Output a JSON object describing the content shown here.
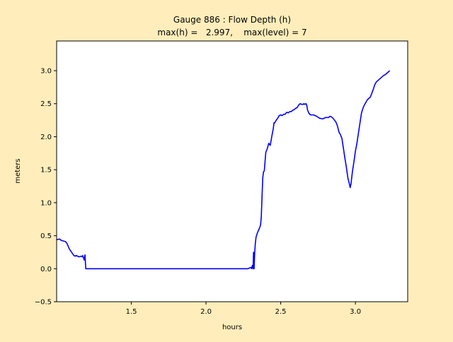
{
  "colors": {
    "figure_background": "#ffeebb",
    "axes_background": "#ffffff",
    "series_line": "#0000ff",
    "axis": "#000000"
  },
  "chart_data": {
    "type": "line",
    "title_line1": "Gauge 886 : Flow Depth (h)",
    "title_line2": "max(h) =   2.997,    max(level) = 7",
    "xlabel": "hours",
    "ylabel": "meters",
    "xlim": [
      1.0,
      3.35
    ],
    "ylim": [
      -0.5,
      3.45
    ],
    "grid": false,
    "legend": "none",
    "x_ticks": [
      {
        "value": 1.5,
        "label": "1.5"
      },
      {
        "value": 2.0,
        "label": "2.0"
      },
      {
        "value": 2.5,
        "label": "2.5"
      },
      {
        "value": 3.0,
        "label": "3.0"
      }
    ],
    "y_ticks": [
      {
        "value": -0.5,
        "label": "−0.5"
      },
      {
        "value": 0.0,
        "label": "0.0"
      },
      {
        "value": 0.5,
        "label": "0.5"
      },
      {
        "value": 1.0,
        "label": "1.0"
      },
      {
        "value": 1.5,
        "label": "1.5"
      },
      {
        "value": 2.0,
        "label": "2.0"
      },
      {
        "value": 2.5,
        "label": "2.5"
      },
      {
        "value": 3.0,
        "label": "3.0"
      }
    ],
    "series": [
      {
        "color": "#0000ff",
        "points": [
          [
            1.0,
            0.44
          ],
          [
            1.02,
            0.45
          ],
          [
            1.03,
            0.43
          ],
          [
            1.06,
            0.41
          ],
          [
            1.07,
            0.38
          ],
          [
            1.085,
            0.3
          ],
          [
            1.1,
            0.25
          ],
          [
            1.115,
            0.2
          ],
          [
            1.125,
            0.19
          ],
          [
            1.13,
            0.2
          ],
          [
            1.14,
            0.19
          ],
          [
            1.15,
            0.18
          ],
          [
            1.165,
            0.19
          ],
          [
            1.17,
            0.18
          ],
          [
            1.175,
            0.2
          ],
          [
            1.185,
            0.13
          ],
          [
            1.19,
            0.21
          ],
          [
            1.195,
            0.0
          ],
          [
            1.5,
            0.0
          ],
          [
            2.0,
            0.0
          ],
          [
            2.28,
            0.0
          ],
          [
            2.3,
            0.02
          ],
          [
            2.305,
            0.0
          ],
          [
            2.31,
            0.05
          ],
          [
            2.315,
            0.0
          ],
          [
            2.318,
            0.25
          ],
          [
            2.322,
            0.0
          ],
          [
            2.326,
            0.25
          ],
          [
            2.33,
            0.38
          ],
          [
            2.335,
            0.48
          ],
          [
            2.345,
            0.55
          ],
          [
            2.355,
            0.6
          ],
          [
            2.365,
            0.66
          ],
          [
            2.37,
            0.79
          ],
          [
            2.375,
            1.1
          ],
          [
            2.38,
            1.38
          ],
          [
            2.385,
            1.47
          ],
          [
            2.39,
            1.48
          ],
          [
            2.395,
            1.62
          ],
          [
            2.4,
            1.76
          ],
          [
            2.41,
            1.82
          ],
          [
            2.42,
            1.9
          ],
          [
            2.43,
            1.87
          ],
          [
            2.44,
            2.0
          ],
          [
            2.45,
            2.12
          ],
          [
            2.455,
            2.21
          ],
          [
            2.46,
            2.21
          ],
          [
            2.47,
            2.25
          ],
          [
            2.48,
            2.28
          ],
          [
            2.49,
            2.32
          ],
          [
            2.5,
            2.33
          ],
          [
            2.51,
            2.32
          ],
          [
            2.52,
            2.34
          ],
          [
            2.53,
            2.34
          ],
          [
            2.54,
            2.37
          ],
          [
            2.55,
            2.36
          ],
          [
            2.56,
            2.38
          ],
          [
            2.57,
            2.38
          ],
          [
            2.58,
            2.4
          ],
          [
            2.59,
            2.41
          ],
          [
            2.6,
            2.43
          ],
          [
            2.61,
            2.44
          ],
          [
            2.62,
            2.48
          ],
          [
            2.63,
            2.5
          ],
          [
            2.64,
            2.49
          ],
          [
            2.65,
            2.49
          ],
          [
            2.655,
            2.5
          ],
          [
            2.66,
            2.49
          ],
          [
            2.67,
            2.5
          ],
          [
            2.675,
            2.47
          ],
          [
            2.68,
            2.4
          ],
          [
            2.69,
            2.35
          ],
          [
            2.7,
            2.33
          ],
          [
            2.72,
            2.33
          ],
          [
            2.74,
            2.31
          ],
          [
            2.76,
            2.28
          ],
          [
            2.78,
            2.27
          ],
          [
            2.8,
            2.29
          ],
          [
            2.82,
            2.29
          ],
          [
            2.83,
            2.31
          ],
          [
            2.84,
            2.3
          ],
          [
            2.85,
            2.28
          ],
          [
            2.87,
            2.22
          ],
          [
            2.88,
            2.16
          ],
          [
            2.89,
            2.07
          ],
          [
            2.9,
            2.03
          ],
          [
            2.91,
            1.97
          ],
          [
            2.92,
            1.82
          ],
          [
            2.93,
            1.67
          ],
          [
            2.94,
            1.53
          ],
          [
            2.95,
            1.37
          ],
          [
            2.96,
            1.28
          ],
          [
            2.965,
            1.23
          ],
          [
            2.97,
            1.28
          ],
          [
            2.98,
            1.47
          ],
          [
            2.99,
            1.62
          ],
          [
            3.0,
            1.78
          ],
          [
            3.01,
            1.9
          ],
          [
            3.02,
            2.05
          ],
          [
            3.03,
            2.2
          ],
          [
            3.04,
            2.35
          ],
          [
            3.05,
            2.43
          ],
          [
            3.06,
            2.48
          ],
          [
            3.07,
            2.52
          ],
          [
            3.08,
            2.56
          ],
          [
            3.09,
            2.58
          ],
          [
            3.1,
            2.6
          ],
          [
            3.11,
            2.66
          ],
          [
            3.12,
            2.72
          ],
          [
            3.13,
            2.79
          ],
          [
            3.14,
            2.83
          ],
          [
            3.15,
            2.85
          ],
          [
            3.16,
            2.87
          ],
          [
            3.17,
            2.89
          ],
          [
            3.18,
            2.91
          ],
          [
            3.19,
            2.93
          ],
          [
            3.2,
            2.94
          ],
          [
            3.21,
            2.96
          ],
          [
            3.22,
            2.98
          ],
          [
            3.23,
            3.0
          ]
        ]
      }
    ]
  }
}
